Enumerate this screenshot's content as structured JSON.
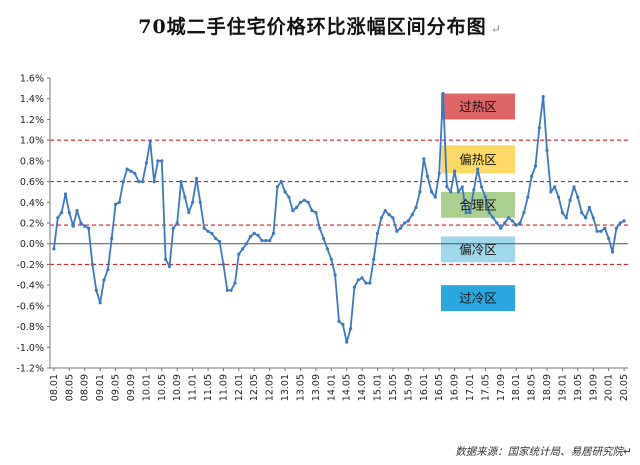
{
  "chart_data": {
    "type": "line",
    "title": "70城二手住宅价格环比涨幅区间分布图",
    "title_mark": "↵",
    "xlabel": "",
    "ylabel": "",
    "ylim": [
      -1.2,
      1.6
    ],
    "y_ticks": [
      "-1.2%",
      "-1.0%",
      "-0.8%",
      "-0.6%",
      "-0.4%",
      "-0.2%",
      "0.0%",
      "0.2%",
      "0.4%",
      "0.6%",
      "0.8%",
      "1.0%",
      "1.2%",
      "1.4%",
      "1.6%"
    ],
    "x_ticks": [
      "08.01",
      "08.05",
      "08.09",
      "09.01",
      "09.05",
      "09.09",
      "10.01",
      "10.05",
      "10.09",
      "11.01",
      "11.05",
      "11.09",
      "12.01",
      "12.05",
      "12.09",
      "13.01",
      "13.05",
      "13.09",
      "14.01",
      "14.05",
      "14.09",
      "15.01",
      "15.05",
      "15.09",
      "16.01",
      "16.05",
      "16.09",
      "17.01",
      "17.05",
      "17.09",
      "18.01",
      "18.05",
      "18.09",
      "19.01",
      "19.05",
      "19.09",
      "20.01",
      "20.05"
    ],
    "reference_lines": [
      {
        "name": "line-1.0",
        "value": 1.0
      },
      {
        "name": "line-0.6",
        "value": 0.6
      },
      {
        "name": "line-0.18",
        "value": 0.18
      },
      {
        "name": "line-0.0",
        "value": 0.0
      },
      {
        "name": "line-neg-0.2",
        "value": -0.2
      }
    ],
    "zones": [
      {
        "name": "zone-overheat",
        "label": "过热区",
        "color": "#e06666",
        "low": 1.2,
        "high": 1.45
      },
      {
        "name": "zone-warm",
        "label": "偏热区",
        "color": "#ffd966",
        "low": 0.68,
        "high": 0.95
      },
      {
        "name": "zone-reasonable",
        "label": "合理区",
        "color": "#a9d08e",
        "low": 0.25,
        "high": 0.5
      },
      {
        "name": "zone-cool",
        "label": "偏冷区",
        "color": "#9fd8ec",
        "low": -0.18,
        "high": 0.07
      },
      {
        "name": "zone-overcool",
        "label": "过冷区",
        "color": "#29a8e0",
        "low": -0.65,
        "high": -0.4
      }
    ],
    "series": [
      {
        "name": "70城二手住宅价格环比涨幅",
        "color": "#3b78c3",
        "values": [
          -0.05,
          0.25,
          0.3,
          0.48,
          0.3,
          0.17,
          0.32,
          0.2,
          0.17,
          0.15,
          -0.2,
          -0.45,
          -0.57,
          -0.35,
          -0.25,
          0.05,
          0.38,
          0.4,
          0.6,
          0.72,
          0.7,
          0.68,
          0.6,
          0.6,
          0.78,
          0.99,
          0.6,
          0.8,
          0.8,
          -0.15,
          -0.22,
          0.15,
          0.2,
          0.6,
          0.45,
          0.3,
          0.4,
          0.63,
          0.4,
          0.15,
          0.12,
          0.1,
          0.05,
          0.02,
          -0.2,
          -0.45,
          -0.45,
          -0.38,
          -0.1,
          -0.05,
          0.0,
          0.07,
          0.1,
          0.08,
          0.03,
          0.03,
          0.03,
          0.1,
          0.55,
          0.6,
          0.5,
          0.45,
          0.32,
          0.35,
          0.4,
          0.42,
          0.4,
          0.32,
          0.3,
          0.15,
          0.05,
          -0.05,
          -0.15,
          -0.3,
          -0.75,
          -0.78,
          -0.95,
          -0.82,
          -0.42,
          -0.35,
          -0.33,
          -0.38,
          -0.38,
          -0.15,
          0.1,
          0.25,
          0.32,
          0.28,
          0.25,
          0.12,
          0.15,
          0.2,
          0.22,
          0.28,
          0.35,
          0.5,
          0.82,
          0.65,
          0.5,
          0.45,
          0.68,
          1.45,
          0.55,
          0.5,
          0.7,
          0.5,
          0.55,
          0.3,
          0.3,
          0.52,
          0.72,
          0.55,
          0.45,
          0.3,
          0.25,
          0.2,
          0.15,
          0.2,
          0.25,
          0.22,
          0.18,
          0.2,
          0.3,
          0.45,
          0.65,
          0.75,
          1.12,
          1.42,
          0.9,
          0.5,
          0.55,
          0.45,
          0.3,
          0.25,
          0.42,
          0.55,
          0.45,
          0.3,
          0.25,
          0.35,
          0.25,
          0.12,
          0.12,
          0.15,
          0.05,
          -0.08,
          0.15,
          0.2,
          0.22
        ]
      }
    ],
    "source_note": "数据来源：国家统计局、易居研究院↵"
  }
}
